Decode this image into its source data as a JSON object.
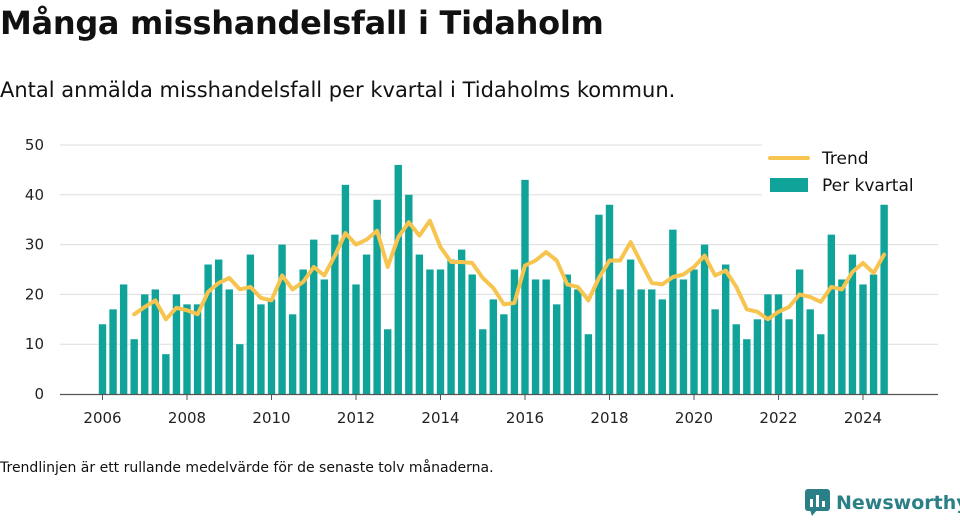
{
  "title": "Många misshandelsfall i Tidaholm",
  "subtitle": "Antal anmälda misshandelsfall per kvartal i Tidaholms kommun.",
  "note": "Trendlinjen är ett rullande medelvärde för de senaste tolv månaderna.",
  "brand": "Newsworthy",
  "colors": {
    "bar": "#0fa39a",
    "trend": "#f6c44f",
    "grid": "#dddddd",
    "logo": "#2b7f86"
  },
  "chart_data": {
    "type": "bar",
    "x_start_year": 2006,
    "quarters_per_year": 4,
    "ylim": [
      0,
      50
    ],
    "yticks": [
      0,
      10,
      20,
      30,
      40,
      50
    ],
    "xticks": [
      "2006",
      "2008",
      "2010",
      "2012",
      "2014",
      "2016",
      "2018",
      "2020",
      "2022",
      "2024"
    ],
    "series": [
      {
        "name": "Per kvartal",
        "type": "bar",
        "values": [
          14,
          17,
          22,
          11,
          20,
          21,
          8,
          20,
          18,
          18,
          26,
          27,
          21,
          10,
          28,
          18,
          19,
          30,
          16,
          25,
          31,
          23,
          32,
          42,
          22,
          28,
          39,
          13,
          46,
          40,
          28,
          25,
          25,
          27,
          29,
          24,
          13,
          19,
          16,
          25,
          43,
          23,
          23,
          18,
          24,
          21,
          12,
          36,
          38,
          21,
          27,
          21,
          21,
          19,
          33,
          23,
          25,
          30,
          17,
          26,
          14,
          11,
          15,
          20,
          20,
          15,
          25,
          17,
          12,
          32,
          23,
          28,
          22,
          24,
          38
        ]
      },
      {
        "name": "Trend",
        "type": "line",
        "values": [
          null,
          null,
          null,
          16,
          17.5,
          18.8,
          15,
          17.3,
          16.8,
          16,
          20.5,
          22.3,
          23.3,
          21,
          21.5,
          19.3,
          18.8,
          23.8,
          21,
          22.5,
          25.5,
          23.8,
          27.8,
          32.3,
          30,
          31,
          32.8,
          25.5,
          31.5,
          34.5,
          31.8,
          34.8,
          29.5,
          26.5,
          26.5,
          26.3,
          23.3,
          21.3,
          18,
          18.3,
          25.8,
          26.8,
          28.5,
          26.8,
          22,
          21.5,
          18.8,
          23.3,
          26.8,
          26.8,
          30.5,
          26.3,
          22.3,
          22,
          23.5,
          24,
          25.5,
          27.8,
          23.8,
          24.8,
          21.5,
          17,
          16.5,
          15,
          16.5,
          17.5,
          20,
          19.5,
          18.5,
          21.5,
          21,
          24.5,
          26.3,
          24.3,
          28
        ]
      }
    ],
    "legend": {
      "position": "top-right",
      "entries": [
        "Trend",
        "Per kvartal"
      ]
    }
  }
}
